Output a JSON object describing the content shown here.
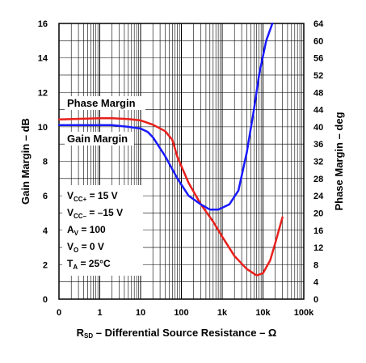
{
  "chart_data": {
    "type": "line",
    "xlabel": "R",
    "xlabel_sub": "SD",
    "xlabel_rest": " – Differential Source Resistance – Ω",
    "ylabel_left": "Gain Margin – dB",
    "ylabel_right": "Phase Margin – deg",
    "x_scale": "log (0 at left edge)",
    "x_ticks": [
      "0",
      "1",
      "10",
      "100",
      "1k",
      "10k",
      "100k"
    ],
    "y_left_ticks": [
      "0",
      "2",
      "4",
      "6",
      "8",
      "10",
      "12",
      "14",
      "16"
    ],
    "y_right_ticks": [
      "0",
      "4",
      "8",
      "12",
      "16",
      "20",
      "24",
      "28",
      "32",
      "36",
      "40",
      "44",
      "48",
      "52",
      "56",
      "60",
      "64"
    ],
    "ylim_left": [
      0,
      16
    ],
    "ylim_right": [
      0,
      64
    ],
    "grid": true,
    "series": [
      {
        "name": "Phase Margin",
        "axis": "right",
        "color": "#e8201c",
        "points": [
          [
            0.1,
            41.7
          ],
          [
            1,
            42.0
          ],
          [
            2,
            42.0
          ],
          [
            5,
            41.8
          ],
          [
            10,
            41.5
          ],
          [
            20,
            40.5
          ],
          [
            40,
            39.0
          ],
          [
            60,
            37.0
          ],
          [
            80,
            33.0
          ],
          [
            150,
            27.0
          ],
          [
            300,
            22.0
          ],
          [
            600,
            18.0
          ],
          [
            1000,
            14.5
          ],
          [
            2000,
            10.0
          ],
          [
            4000,
            7.0
          ],
          [
            7000,
            5.5
          ],
          [
            10000,
            6.0
          ],
          [
            15000,
            9.0
          ],
          [
            20000,
            13.0
          ],
          [
            30000,
            19.0
          ]
        ]
      },
      {
        "name": "Gain Margin",
        "axis": "left",
        "color": "#1a1aff",
        "points": [
          [
            0.1,
            10.1
          ],
          [
            1,
            10.1
          ],
          [
            2,
            10.1
          ],
          [
            5,
            10.0
          ],
          [
            10,
            9.9
          ],
          [
            15,
            9.7
          ],
          [
            20,
            9.4
          ],
          [
            40,
            8.3
          ],
          [
            80,
            7.0
          ],
          [
            150,
            6.0
          ],
          [
            300,
            5.5
          ],
          [
            500,
            5.2
          ],
          [
            800,
            5.2
          ],
          [
            1500,
            5.5
          ],
          [
            2500,
            6.3
          ],
          [
            4000,
            8.5
          ],
          [
            6000,
            11.0
          ],
          [
            8000,
            13.0
          ],
          [
            12000,
            15.0
          ],
          [
            17000,
            16.0
          ]
        ]
      }
    ],
    "conditions": [
      {
        "label": "V",
        "sub": "CC+",
        "value": " = 15 V"
      },
      {
        "label": "V",
        "sub": "CC–",
        "value": " = –15 V"
      },
      {
        "label": "A",
        "sub": "V",
        "value": " = 100"
      },
      {
        "label": "V",
        "sub": "O",
        "value": " = 0 V"
      },
      {
        "label": "T",
        "sub": "A",
        "value": " = 25°C"
      }
    ]
  }
}
